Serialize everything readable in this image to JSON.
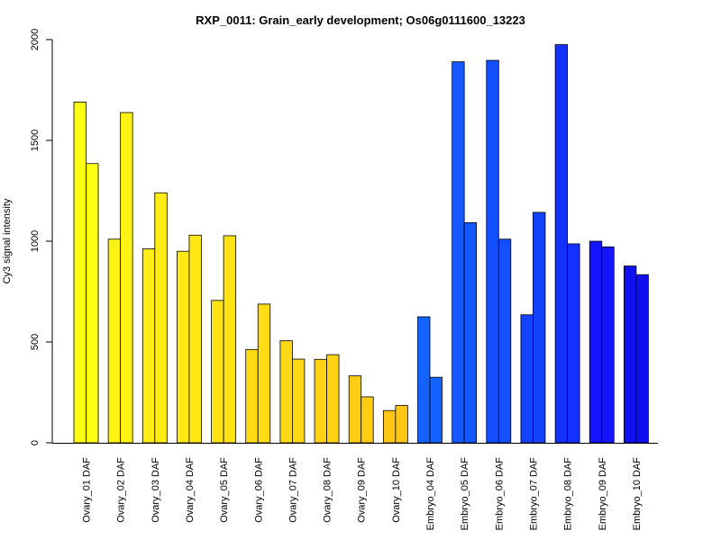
{
  "chart_data": {
    "type": "bar",
    "title": "RXP_0011: Grain_early development; Os06g0111600_13223",
    "xlabel": "",
    "ylabel": "Cy3 signal intensity",
    "ylim": [
      0,
      2000
    ],
    "yticks": [
      0,
      500,
      1000,
      1500,
      2000
    ],
    "categories": [
      "Ovary_01 DAF",
      "Ovary_02 DAF",
      "Ovary_03 DAF",
      "Ovary_04 DAF",
      "Ovary_05 DAF",
      "Ovary_06 DAF",
      "Ovary_07 DAF",
      "Ovary_08 DAF",
      "Ovary_09 DAF",
      "Ovary_10 DAF",
      "Embryo_04 DAF",
      "Embryo_05 DAF",
      "Embryo_06 DAF",
      "Embryo_07 DAF",
      "Embryo_08 DAF",
      "Embryo_09 DAF",
      "Embryo_10 DAF"
    ],
    "colors": [
      "#ffff14",
      "#fff314",
      "#ffec14",
      "#ffe814",
      "#ffe314",
      "#ffdc14",
      "#ffd814",
      "#ffd314",
      "#ffcc14",
      "#ffc614",
      "#1463ff",
      "#1458ff",
      "#144fff",
      "#1442ff",
      "#1430ff",
      "#1414ff",
      "#1010ee"
    ],
    "series": [
      {
        "values": [
          1690,
          1010,
          962,
          950,
          706,
          463,
          506,
          414,
          332,
          160,
          625,
          1890,
          1897,
          635,
          1975,
          1000,
          877
        ]
      },
      {
        "values": [
          1385,
          1638,
          1240,
          1030,
          1027,
          688,
          415,
          437,
          228,
          185,
          325,
          1092,
          1010,
          1143,
          987,
          972,
          834
        ]
      }
    ],
    "grid": false,
    "legend": "none"
  }
}
